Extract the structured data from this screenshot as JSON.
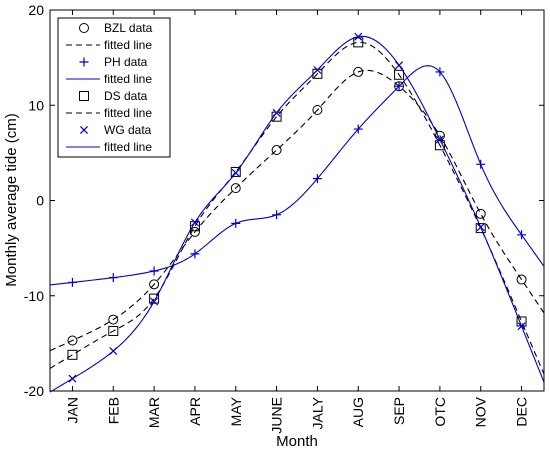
{
  "chart_data": {
    "type": "line",
    "xlabel": "Month",
    "ylabel": "Monthly average tide (cm)",
    "categories": [
      "JAN",
      "FEB",
      "MAR",
      "APR",
      "MAY",
      "JUNE",
      "JALY",
      "AUG",
      "SEP",
      "OTC",
      "NOV",
      "DEC"
    ],
    "ylim": [
      -20,
      20
    ],
    "yticks": [
      -20,
      -10,
      0,
      10,
      20
    ],
    "grid": false,
    "legend_position": "top-left",
    "series": [
      {
        "name": "BZL data",
        "marker": "circle",
        "color": "#000000",
        "values": [
          -14.7,
          -12.5,
          -8.8,
          -3.3,
          1.3,
          5.3,
          9.5,
          13.5,
          12.0,
          6.8,
          -1.4,
          -8.3
        ]
      },
      {
        "name": "PH data",
        "marker": "plus",
        "color": "#0000cc",
        "values": [
          -8.6,
          -8.1,
          -7.4,
          -5.6,
          -2.4,
          -1.5,
          2.3,
          7.5,
          12.0,
          13.5,
          3.8,
          -3.6
        ]
      },
      {
        "name": "DS data",
        "marker": "square",
        "color": "#000000",
        "values": [
          -16.2,
          -13.7,
          -10.3,
          -2.7,
          3.0,
          8.8,
          13.3,
          16.6,
          13.2,
          5.8,
          -2.9,
          -12.7
        ]
      },
      {
        "name": "WG data",
        "marker": "x",
        "color": "#0000cc",
        "values": [
          -18.7,
          -15.8,
          -10.6,
          -2.3,
          2.9,
          9.2,
          13.7,
          17.2,
          14.2,
          6.4,
          -2.8,
          -13.2
        ]
      }
    ],
    "fitted_lines": [
      {
        "name": "fitted line",
        "style": "dashed",
        "color": "#000000"
      },
      {
        "name": "fitted line",
        "style": "solid",
        "color": "#0000cc"
      },
      {
        "name": "fitted line",
        "style": "dashed",
        "color": "#000000"
      },
      {
        "name": "fitted line",
        "style": "solid",
        "color": "#0000cc"
      }
    ]
  }
}
